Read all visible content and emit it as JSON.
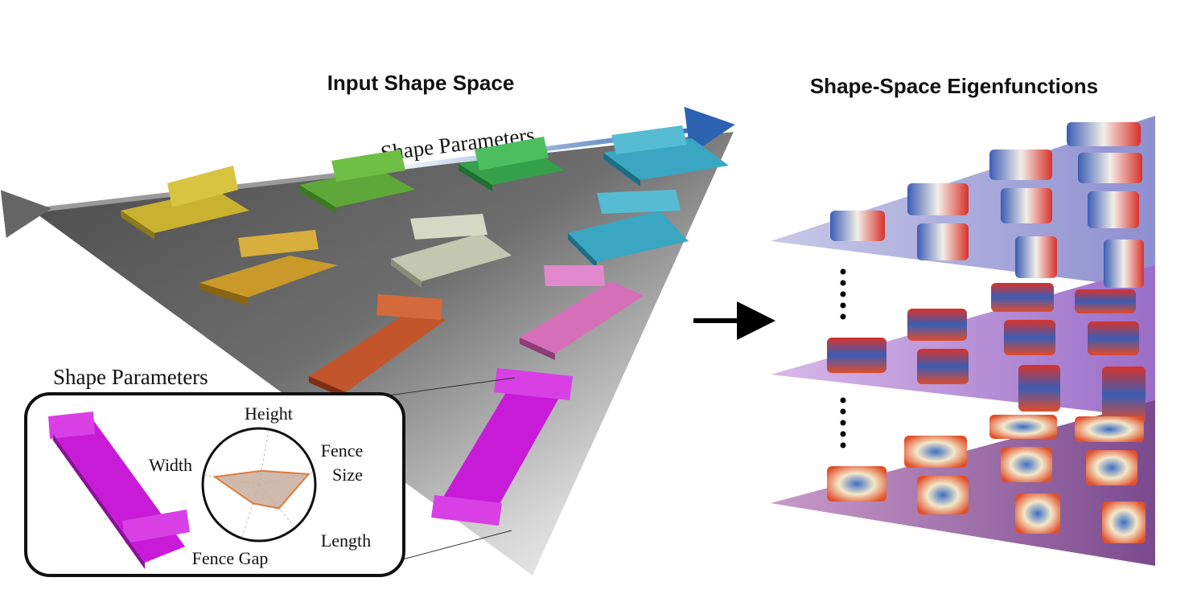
{
  "left_panel": {
    "title": "Input Shape Space",
    "axis_label": "Shape Parameters",
    "inset": {
      "caption": "Shape Parameters",
      "radar_axes": [
        "Height",
        "Fence Size",
        "Length",
        "Fence Gap",
        "Width"
      ],
      "radar_values": [
        0.25,
        0.9,
        0.55,
        0.35,
        0.8
      ]
    },
    "colors": [
      "#c9b230",
      "#c99a2a",
      "#5ea83a",
      "#35a04a",
      "#c3c6b0",
      "#3aa6c2",
      "#c2552b",
      "#d46fb8",
      "#c81bd8"
    ]
  },
  "right_panel": {
    "title": "Shape-Space Eigenfunctions",
    "gradient_colors": [
      "#3b5db5",
      "#ffffff",
      "#d8322a"
    ]
  },
  "arrow": {
    "label": ""
  }
}
